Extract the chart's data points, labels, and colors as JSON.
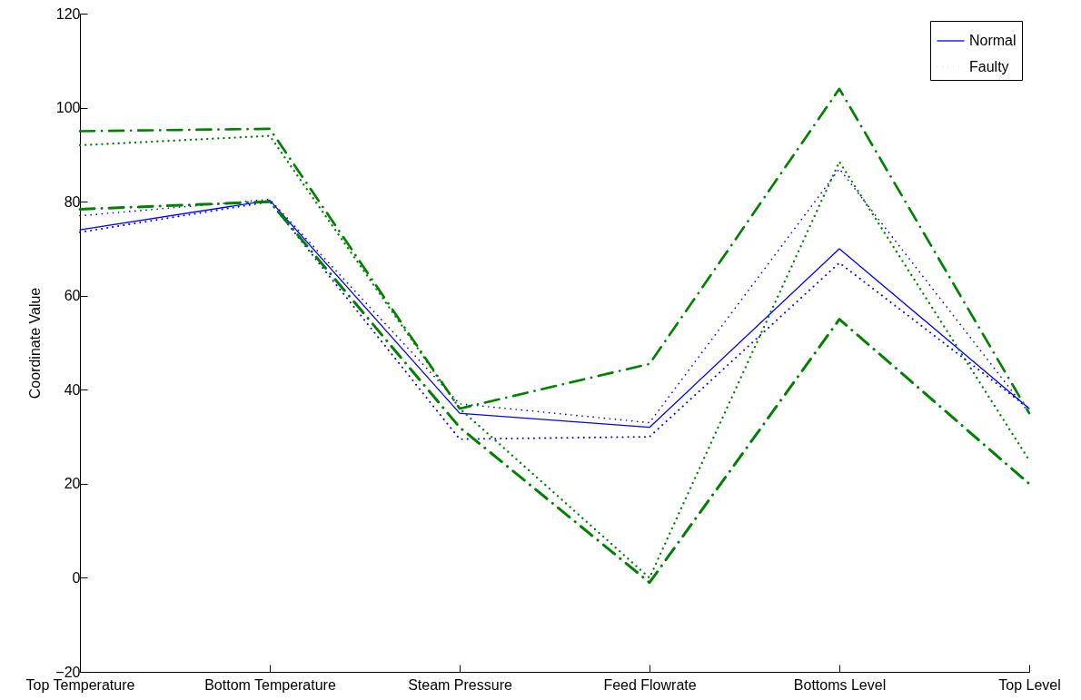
{
  "chart_data": {
    "type": "line",
    "ylabel": "Coordinate Value",
    "categories": [
      "Top Temperature",
      "Bottom Temperature",
      "Steam Pressure",
      "Feed Flowrate",
      "Bottoms Level",
      "Top Level"
    ],
    "series": [
      {
        "name": "Normal",
        "color": "#0000ff",
        "line_style": "solid",
        "values": [
          74,
          80.3,
          35,
          32,
          70,
          36
        ]
      },
      {
        "color": "#0000ff",
        "line_style": "dotted",
        "values": [
          77,
          80.5,
          37,
          33,
          87,
          35
        ]
      },
      {
        "color": "#0000ff",
        "line_style": "dotted",
        "values": [
          73.5,
          80,
          29.5,
          30,
          67,
          36
        ]
      },
      {
        "name": "Faulty",
        "color": "#008000",
        "line_style": "dotted",
        "values": [
          92,
          94,
          36,
          0,
          88.5,
          25
        ]
      },
      {
        "color": "#008000",
        "line_style": "dashed",
        "values": [
          95,
          95.5,
          36,
          45.5,
          104,
          35
        ]
      },
      {
        "color": "#008000",
        "line_style": "dashed",
        "values": [
          78.4,
          80,
          32,
          -1,
          55,
          20
        ]
      }
    ],
    "ylim": [
      -20,
      120
    ],
    "yticks": [
      -20,
      0,
      20,
      40,
      60,
      80,
      100,
      120
    ],
    "legend": "top right",
    "grid": false,
    "marker": "none"
  }
}
